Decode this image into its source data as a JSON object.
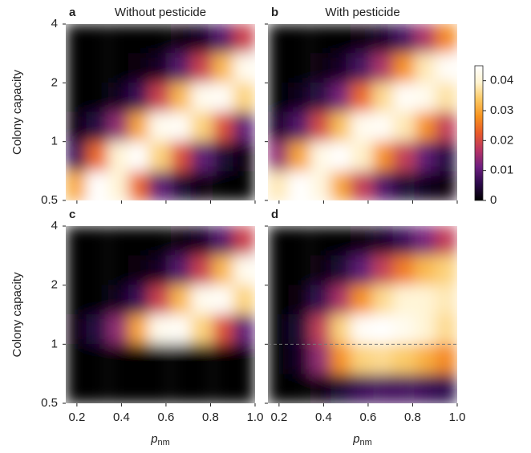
{
  "chart_data": [
    {
      "type": "heatmap",
      "panel_label": "a",
      "title": "Without pesticide",
      "ylabel": "Colony capacity",
      "x": [
        0.2,
        0.29,
        0.39,
        0.48,
        0.57,
        0.67,
        0.76,
        0.86,
        0.95
      ],
      "y": [
        3.36,
        2.38,
        1.68,
        1.19,
        0.84,
        0.59
      ],
      "z": [
        [
          0,
          0,
          0,
          0,
          0,
          0.001,
          0.003,
          0.009,
          0.019
        ],
        [
          0,
          0,
          0,
          0.001,
          0.003,
          0.009,
          0.019,
          0.032,
          0.043
        ],
        [
          0,
          0,
          0.002,
          0.007,
          0.019,
          0.032,
          0.043,
          0.044,
          0.035
        ],
        [
          0.001,
          0.005,
          0.014,
          0.03,
          0.043,
          0.044,
          0.035,
          0.021,
          0.01
        ],
        [
          0.007,
          0.024,
          0.04,
          0.045,
          0.035,
          0.021,
          0.01,
          0.004,
          0.001
        ],
        [
          0.03,
          0.045,
          0.04,
          0.024,
          0.01,
          0.004,
          0.001,
          0,
          0
        ]
      ],
      "xlim": [
        0.15,
        1.0
      ],
      "xticks": [
        0.2,
        0.4,
        0.6,
        0.8,
        {
          "value": 1,
          "label": "1.0"
        }
      ],
      "ylim": [
        0.5,
        4
      ],
      "yticks": [
        0.5,
        1,
        2,
        4
      ],
      "log_y": true
    },
    {
      "type": "heatmap",
      "panel_label": "b",
      "title": "With pesticide",
      "x": [
        0.2,
        0.29,
        0.39,
        0.48,
        0.57,
        0.67,
        0.76,
        0.86,
        0.95
      ],
      "y": [
        3.36,
        2.38,
        1.68,
        1.19,
        0.84,
        0.59
      ],
      "z": [
        [
          0,
          0,
          0,
          0,
          0.001,
          0.003,
          0.008,
          0.016,
          0.027
        ],
        [
          0,
          0,
          0.001,
          0.003,
          0.008,
          0.016,
          0.028,
          0.038,
          0.044
        ],
        [
          0,
          0.002,
          0.005,
          0.012,
          0.024,
          0.036,
          0.044,
          0.043,
          0.037
        ],
        [
          0.003,
          0.009,
          0.02,
          0.033,
          0.043,
          0.044,
          0.038,
          0.028,
          0.018
        ],
        [
          0.014,
          0.03,
          0.042,
          0.045,
          0.039,
          0.028,
          0.018,
          0.01,
          0.005
        ],
        [
          0.038,
          0.045,
          0.041,
          0.03,
          0.018,
          0.009,
          0.004,
          0.002,
          0.001
        ]
      ],
      "xlim": [
        0.15,
        1.0
      ],
      "xticks": [
        0.2,
        0.4,
        0.6,
        0.8,
        {
          "value": 1,
          "label": "1.0"
        }
      ],
      "ylim": [
        0.5,
        4
      ],
      "yticks": [
        0.5,
        1,
        2,
        4
      ],
      "log_y": true
    },
    {
      "type": "heatmap",
      "panel_label": "c",
      "ylabel": "Colony capacity",
      "xlabel": {
        "main": "p",
        "sub": "nm"
      },
      "x": [
        0.2,
        0.29,
        0.39,
        0.48,
        0.57,
        0.67,
        0.76,
        0.86,
        0.95
      ],
      "y": [
        3.36,
        2.38,
        1.68,
        1.19,
        0.84,
        0.59
      ],
      "z": [
        [
          0,
          0,
          0,
          0,
          0,
          0.001,
          0.003,
          0.009,
          0.019
        ],
        [
          0,
          0,
          0,
          0.001,
          0.003,
          0.009,
          0.019,
          0.032,
          0.043
        ],
        [
          0,
          0,
          0.002,
          0.007,
          0.019,
          0.032,
          0.043,
          0.044,
          0.035
        ],
        [
          0.001,
          0.005,
          0.014,
          0.03,
          0.043,
          0.044,
          0.035,
          0.021,
          0.01
        ],
        [
          0,
          0,
          0,
          0,
          0,
          0,
          0,
          0,
          0
        ],
        [
          0,
          0,
          0,
          0,
          0,
          0,
          0,
          0,
          0
        ]
      ],
      "xlim": [
        0.15,
        1.0
      ],
      "xticks": [
        0.2,
        0.4,
        0.6,
        0.8,
        {
          "value": 1,
          "label": "1.0"
        }
      ],
      "ylim": [
        0.5,
        4
      ],
      "yticks": [
        0.5,
        1,
        2,
        4
      ],
      "log_y": true
    },
    {
      "type": "heatmap",
      "panel_label": "d",
      "xlabel": {
        "main": "p",
        "sub": "nm"
      },
      "x": [
        0.2,
        0.29,
        0.39,
        0.48,
        0.57,
        0.67,
        0.76,
        0.86,
        0.95
      ],
      "y": [
        3.36,
        2.38,
        1.68,
        1.19,
        0.84,
        0.59
      ],
      "z": [
        [
          0,
          0,
          0,
          0,
          0.001,
          0.003,
          0.007,
          0.012,
          0.018
        ],
        [
          0,
          0,
          0.001,
          0.004,
          0.01,
          0.018,
          0.026,
          0.032,
          0.035
        ],
        [
          0,
          0.001,
          0.006,
          0.016,
          0.028,
          0.036,
          0.04,
          0.04,
          0.038
        ],
        [
          0,
          0.004,
          0.018,
          0.035,
          0.044,
          0.045,
          0.043,
          0.04,
          0.036
        ],
        [
          0,
          0.003,
          0.014,
          0.028,
          0.035,
          0.036,
          0.034,
          0.031,
          0.027
        ],
        [
          0,
          0,
          0.001,
          0.004,
          0.007,
          0.008,
          0.008,
          0.007,
          0.006
        ]
      ],
      "xlim": [
        0.15,
        1.0
      ],
      "xticks": [
        0.2,
        0.4,
        0.6,
        0.8,
        {
          "value": 1,
          "label": "1.0"
        }
      ],
      "ylim": [
        0.5,
        4
      ],
      "yticks": [
        0.5,
        1,
        2,
        4
      ],
      "log_y": true,
      "hline": 1
    },
    {
      "type": "colorbar",
      "zlim": [
        0,
        0.045
      ],
      "zticks": [
        0,
        0.01,
        0.02,
        0.03,
        0.04
      ],
      "colormap": [
        "#000000",
        "#2b0a4a",
        "#6e1f80",
        "#b83463",
        "#e85a2a",
        "#f7931e",
        "#fbc863",
        "#fff3d0",
        "#ffffff"
      ]
    }
  ]
}
